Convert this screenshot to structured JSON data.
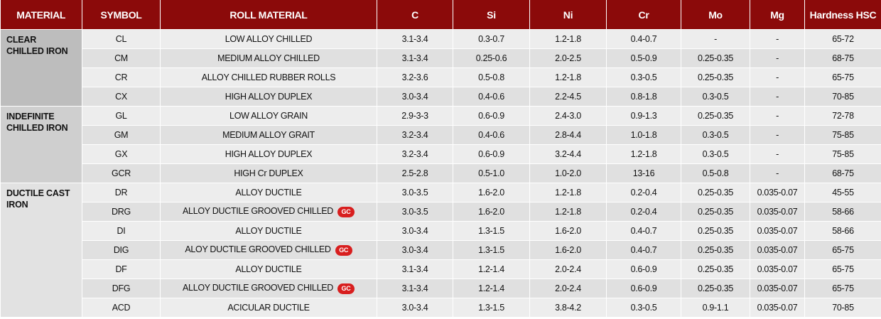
{
  "table": {
    "columns": [
      "MATERIAL",
      "SYMBOL",
      "ROLL MATERIAL",
      "C",
      "Si",
      "Ni",
      "Cr",
      "Mo",
      "Mg",
      "Hardness HSC"
    ],
    "groups": [
      {
        "material": "CLEAR CHILLED IRON",
        "rows": [
          {
            "cells": [
              "CL",
              "LOW ALLOY CHILLED",
              "3.1-3.4",
              "0.3-0.7",
              "1.2-1.8",
              "0.4-0.7",
              "-",
              "-",
              "65-72"
            ]
          },
          {
            "cells": [
              "CM",
              "MEDIUM ALLOY CHILLED",
              "3.1-3.4",
              "0.25-0.6",
              "2.0-2.5",
              "0.5-0.9",
              "0.25-0.35",
              "-",
              "68-75"
            ]
          },
          {
            "cells": [
              "CR",
              "ALLOY CHILLED RUBBER ROLLS",
              "3.2-3.6",
              "0.5-0.8",
              "1.2-1.8",
              "0.3-0.5",
              "0.25-0.35",
              "-",
              "65-75"
            ]
          },
          {
            "cells": [
              "CX",
              "HIGH ALLOY DUPLEX",
              "3.0-3.4",
              "0.4-0.6",
              "2.2-4.5",
              "0.8-1.8",
              "0.3-0.5",
              "-",
              "70-85"
            ]
          }
        ]
      },
      {
        "material": "INDEFINITE CHILLED IRON",
        "rows": [
          {
            "cells": [
              "GL",
              "LOW ALLOY GRAIN",
              "2.9-3-3",
              "0.6-0.9",
              "2.4-3.0",
              "0.9-1.3",
              "0.25-0.35",
              "-",
              "72-78"
            ]
          },
          {
            "cells": [
              "GM",
              "MEDIUM ALLOY GRAIT",
              "3.2-3.4",
              "0.4-0.6",
              "2.8-4.4",
              "1.0-1.8",
              "0.3-0.5",
              "-",
              "75-85"
            ]
          },
          {
            "cells": [
              "GX",
              "HIGH ALLOY DUPLEX",
              "3.2-3.4",
              "0.6-0.9",
              "3.2-4.4",
              "1.2-1.8",
              "0.3-0.5",
              "-",
              "75-85"
            ]
          },
          {
            "cells": [
              "GCR",
              "HIGH Cr DUPLEX",
              "2.5-2.8",
              "0.5-1.0",
              "1.0-2.0",
              "13-16",
              "0.5-0.8",
              "-",
              "68-75"
            ]
          }
        ]
      },
      {
        "material": "DUCTILE CAST IRON",
        "rows": [
          {
            "cells": [
              "DR",
              "ALLOY DUCTILE",
              "3.0-3.5",
              "1.6-2.0",
              "1.2-1.8",
              "0.2-0.4",
              "0.25-0.35",
              "0.035-0.07",
              "45-55"
            ]
          },
          {
            "cells": [
              "DRG",
              "ALLOY DUCTILE GROOVED CHILLED",
              "3.0-3.5",
              "1.6-2.0",
              "1.2-1.8",
              "0.2-0.4",
              "0.25-0.35",
              "0.035-0.07",
              "58-66"
            ],
            "badge": "GC"
          },
          {
            "cells": [
              "DI",
              "ALLOY DUCTILE",
              "3.0-3.4",
              "1.3-1.5",
              "1.6-2.0",
              "0.4-0.7",
              "0.25-0.35",
              "0.035-0.07",
              "58-66"
            ]
          },
          {
            "cells": [
              "DIG",
              "ALOY DUCTILE GROOVED CHILLED",
              "3.0-3.4",
              "1.3-1.5",
              "1.6-2.0",
              "0.4-0.7",
              "0.25-0.35",
              "0.035-0.07",
              "65-75"
            ],
            "badge": "GC"
          },
          {
            "cells": [
              "DF",
              "ALLOY DUCTILE",
              "3.1-3.4",
              "1.2-1.4",
              "2.0-2.4",
              "0.6-0.9",
              "0.25-0.35",
              "0.035-0.07",
              "65-75"
            ]
          },
          {
            "cells": [
              "DFG",
              "ALLOY DUCTILE GROOVED CHILLED",
              "3.1-3.4",
              "1.2-1.4",
              "2.0-2.4",
              "0.6-0.9",
              "0.25-0.35",
              "0.035-0.07",
              "65-75"
            ],
            "badge": "GC"
          },
          {
            "cells": [
              "ACD",
              "ACICULAR DUCTILE",
              "3.0-3.4",
              "1.3-1.5",
              "3.8-4.2",
              "0.3-0.5",
              "0.9-1.1",
              "0.035-0.07",
              "70-85"
            ]
          }
        ]
      }
    ]
  }
}
